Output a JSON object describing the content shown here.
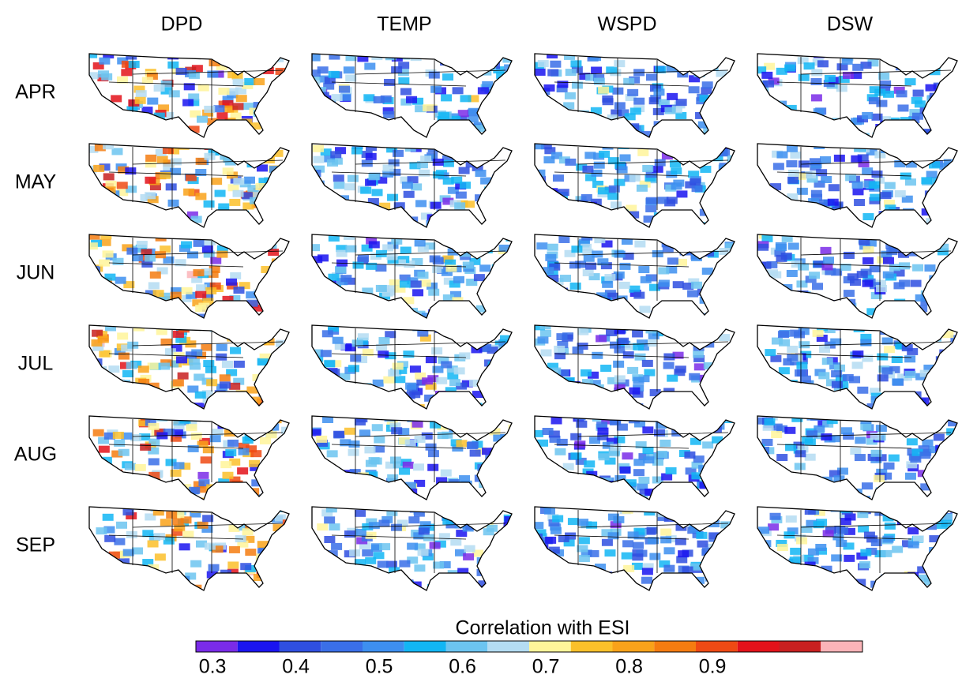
{
  "columns": [
    "DPD",
    "TEMP",
    "WSPD",
    "DSW"
  ],
  "rows": [
    "APR",
    "MAY",
    "JUN",
    "JUL",
    "AUG",
    "SEP"
  ],
  "colorbar": {
    "title": "Correlation with ESI",
    "colors": [
      "#7a2be8",
      "#1a14f0",
      "#2f4fe0",
      "#3a6fe8",
      "#3d8ff0",
      "#12b6f4",
      "#6cc4f0",
      "#b4dcf2",
      "#fff59a",
      "#fbc02a",
      "#f9a21a",
      "#f57c10",
      "#ef4a14",
      "#e3121a",
      "#c82020",
      "#fbb4b8"
    ],
    "range": [
      0.28,
      1.08
    ],
    "ticks": [
      0.3,
      0.4,
      0.5,
      0.6,
      0.7,
      0.8,
      0.9
    ]
  }
}
